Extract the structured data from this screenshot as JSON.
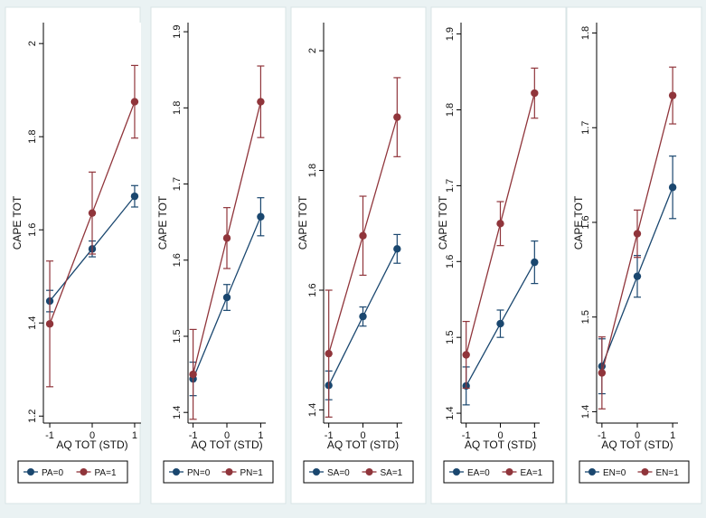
{
  "colors": {
    "series0": "#1a476f",
    "series1": "#90353b",
    "frame": "#ffffff",
    "background": "#eaf2f3",
    "plot_bg": "#ffffff"
  },
  "chart_data": [
    {
      "type": "line",
      "xlabel": "AQ TOT (STD)",
      "ylabel": "CAPE TOT",
      "x": [
        -1,
        0,
        1
      ],
      "xticks": [
        -1,
        0,
        1
      ],
      "xlim": [
        -1.15,
        1.15
      ],
      "ylim": [
        1.185,
        2.045
      ],
      "yticks": [
        "1.2",
        "1.4",
        "1.6",
        "1.8",
        "2"
      ],
      "series": [
        {
          "name": "PA=0",
          "values": [
            1.447,
            1.559,
            1.672
          ],
          "ci_low": [
            1.424,
            1.542,
            1.649
          ],
          "ci_high": [
            1.47,
            1.576,
            1.695
          ]
        },
        {
          "name": "PA=1",
          "values": [
            1.398,
            1.636,
            1.875
          ],
          "ci_low": [
            1.263,
            1.548,
            1.797
          ],
          "ci_high": [
            1.533,
            1.724,
            1.953
          ]
        }
      ]
    },
    {
      "type": "line",
      "xlabel": "AQ TOT (STD)",
      "ylabel": "CAPE TOT",
      "x": [
        -1,
        0,
        1
      ],
      "xticks": [
        -1,
        0,
        1
      ],
      "xlim": [
        -1.15,
        1.15
      ],
      "ylim": [
        1.386,
        1.912
      ],
      "yticks": [
        "1.4",
        "1.5",
        "1.6",
        "1.7",
        "1.8",
        "1.9"
      ],
      "series": [
        {
          "name": "PN=0",
          "values": [
            1.444,
            1.551,
            1.657
          ],
          "ci_low": [
            1.422,
            1.534,
            1.632
          ],
          "ci_high": [
            1.466,
            1.568,
            1.682
          ]
        },
        {
          "name": "PN=1",
          "values": [
            1.45,
            1.629,
            1.808
          ],
          "ci_low": [
            1.391,
            1.589,
            1.761
          ],
          "ci_high": [
            1.509,
            1.669,
            1.855
          ]
        }
      ]
    },
    {
      "type": "line",
      "xlabel": "AQ TOT (STD)",
      "ylabel": "CAPE TOT",
      "x": [
        -1,
        0,
        1
      ],
      "xticks": [
        -1,
        0,
        1
      ],
      "xlim": [
        -1.15,
        1.15
      ],
      "ylim": [
        1.378,
        2.047
      ],
      "yticks": [
        "1.4",
        "1.6",
        "1.8",
        "2"
      ],
      "series": [
        {
          "name": "SA=0",
          "values": [
            1.441,
            1.556,
            1.669
          ],
          "ci_low": [
            1.417,
            1.54,
            1.645
          ],
          "ci_high": [
            1.465,
            1.572,
            1.693
          ]
        },
        {
          "name": "SA=1",
          "values": [
            1.494,
            1.691,
            1.889
          ],
          "ci_low": [
            1.388,
            1.625,
            1.823
          ],
          "ci_high": [
            1.6,
            1.757,
            1.955
          ]
        }
      ]
    },
    {
      "type": "line",
      "xlabel": "AQ TOT (STD)",
      "ylabel": "CAPE TOT",
      "x": [
        -1,
        0,
        1
      ],
      "xticks": [
        -1,
        0,
        1
      ],
      "xlim": [
        -1.15,
        1.15
      ],
      "ylim": [
        1.387,
        1.915
      ],
      "yticks": [
        "1.4",
        "1.5",
        "1.6",
        "1.7",
        "1.8",
        "1.9"
      ],
      "series": [
        {
          "name": "EA=0",
          "values": [
            1.436,
            1.518,
            1.599
          ],
          "ci_low": [
            1.411,
            1.5,
            1.571
          ],
          "ci_high": [
            1.461,
            1.536,
            1.627
          ]
        },
        {
          "name": "EA=1",
          "values": [
            1.477,
            1.65,
            1.822
          ],
          "ci_low": [
            1.433,
            1.621,
            1.789
          ],
          "ci_high": [
            1.521,
            1.679,
            1.855
          ]
        }
      ]
    },
    {
      "type": "line",
      "xlabel": "AQ TOT (STD)",
      "ylabel": "CAPE TOT",
      "x": [
        -1,
        0,
        1
      ],
      "xticks": [
        -1,
        0,
        1
      ],
      "xlim": [
        -1.15,
        1.15
      ],
      "ylim": [
        1.388,
        1.811
      ],
      "yticks": [
        "1.4",
        "1.5",
        "1.6",
        "1.7",
        "1.8"
      ],
      "series": [
        {
          "name": "EN=0",
          "values": [
            1.448,
            1.543,
            1.637
          ],
          "ci_low": [
            1.419,
            1.521,
            1.604
          ],
          "ci_high": [
            1.477,
            1.565,
            1.67
          ]
        },
        {
          "name": "EN=1",
          "values": [
            1.441,
            1.588,
            1.734
          ],
          "ci_low": [
            1.403,
            1.563,
            1.704
          ],
          "ci_high": [
            1.479,
            1.613,
            1.764
          ]
        }
      ]
    }
  ]
}
